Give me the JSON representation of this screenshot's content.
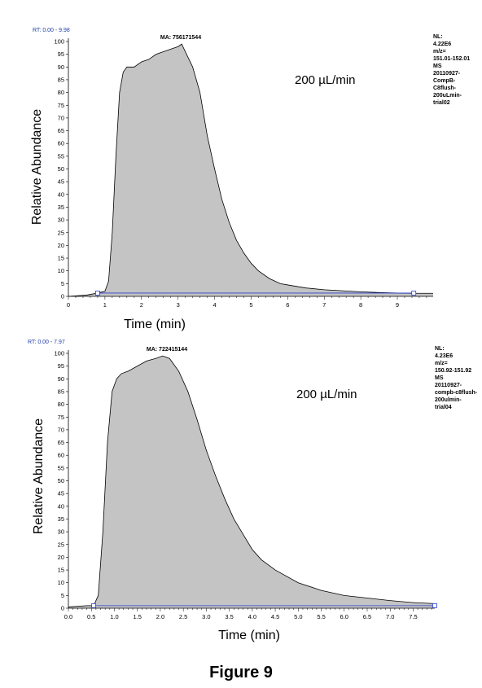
{
  "figure_caption": "Figure 9",
  "chart_data": [
    {
      "type": "area",
      "rt_label": "RT: 0.00 - 9.98",
      "xlabel": "Time (min)",
      "ylabel": "Relative Abundance",
      "xlim": [
        0,
        9.98
      ],
      "ylim": [
        0,
        100
      ],
      "x_ticks": [
        0,
        1,
        2,
        3,
        4,
        5,
        6,
        7,
        8,
        9
      ],
      "y_ticks": [
        0,
        5,
        10,
        15,
        20,
        25,
        30,
        35,
        40,
        45,
        50,
        55,
        60,
        65,
        70,
        75,
        80,
        85,
        90,
        95,
        100
      ],
      "peak_label": "MA: 756171544",
      "peak_label_x": 3.0,
      "flow_label": "200 µL/min",
      "info_lines": [
        "NL:",
        "4.22E6",
        "m/z=",
        "151.01-152.01",
        "MS",
        "20110927-",
        "CompB-",
        "C8flush-",
        "200uLmin-",
        "trial02"
      ],
      "baseline_markers_x": [
        0.8,
        9.45
      ],
      "baseline_y": 1.3,
      "x": [
        0,
        0.5,
        0.8,
        1.0,
        1.1,
        1.2,
        1.3,
        1.4,
        1.5,
        1.6,
        1.8,
        2.0,
        2.2,
        2.4,
        2.6,
        2.8,
        3.0,
        3.1,
        3.2,
        3.4,
        3.6,
        3.8,
        4.0,
        4.2,
        4.4,
        4.6,
        4.8,
        5.0,
        5.2,
        5.5,
        5.8,
        6.0,
        6.5,
        7.0,
        7.5,
        8.0,
        8.5,
        9.0,
        9.5,
        9.98
      ],
      "y": [
        0,
        0.5,
        1.3,
        2,
        6,
        25,
        55,
        80,
        88,
        90,
        90,
        92,
        93,
        95,
        96,
        97,
        98,
        99,
        96,
        90,
        80,
        63,
        50,
        38,
        29,
        22,
        17,
        13,
        10,
        7,
        5,
        4.5,
        3.3,
        2.6,
        2.2,
        1.8,
        1.5,
        1.3,
        1.2,
        1.2
      ]
    },
    {
      "type": "area",
      "rt_label": "RT: 0.00 - 7.97",
      "xlabel": "Time (min)",
      "ylabel": "Relative Abundance",
      "xlim": [
        0,
        7.97
      ],
      "ylim": [
        0,
        100
      ],
      "x_ticks": [
        0.0,
        0.5,
        1.0,
        1.5,
        2.0,
        2.5,
        3.0,
        3.5,
        4.0,
        4.5,
        5.0,
        5.5,
        6.0,
        6.5,
        7.0,
        7.5
      ],
      "y_ticks": [
        0,
        5,
        10,
        15,
        20,
        25,
        30,
        35,
        40,
        45,
        50,
        55,
        60,
        65,
        70,
        75,
        80,
        85,
        90,
        95,
        100
      ],
      "peak_label": "MA: 722415144",
      "peak_label_x": 2.0,
      "flow_label": "200 µL/min",
      "info_lines": [
        "NL:",
        "4.23E6",
        "m/z=",
        "150.92-151.92",
        "MS",
        "20110927-",
        "compb-c8flush-",
        "200ulmin-",
        "trial04"
      ],
      "baseline_markers_x": [
        0.55,
        7.97
      ],
      "baseline_y": 1.0,
      "x": [
        0,
        0.4,
        0.55,
        0.65,
        0.75,
        0.85,
        0.95,
        1.05,
        1.15,
        1.3,
        1.5,
        1.7,
        1.9,
        2.05,
        2.2,
        2.4,
        2.6,
        2.8,
        3.0,
        3.2,
        3.4,
        3.6,
        3.8,
        4.0,
        4.2,
        4.5,
        5.0,
        5.5,
        6.0,
        6.5,
        7.0,
        7.5,
        7.97
      ],
      "y": [
        0.5,
        1.0,
        1.0,
        5,
        30,
        65,
        85,
        90,
        92,
        93,
        95,
        97,
        98,
        99,
        98,
        93,
        85,
        74,
        62,
        52,
        43,
        35,
        29,
        23,
        19,
        15,
        10,
        7,
        5,
        4,
        3,
        2.2,
        1.8
      ]
    }
  ]
}
